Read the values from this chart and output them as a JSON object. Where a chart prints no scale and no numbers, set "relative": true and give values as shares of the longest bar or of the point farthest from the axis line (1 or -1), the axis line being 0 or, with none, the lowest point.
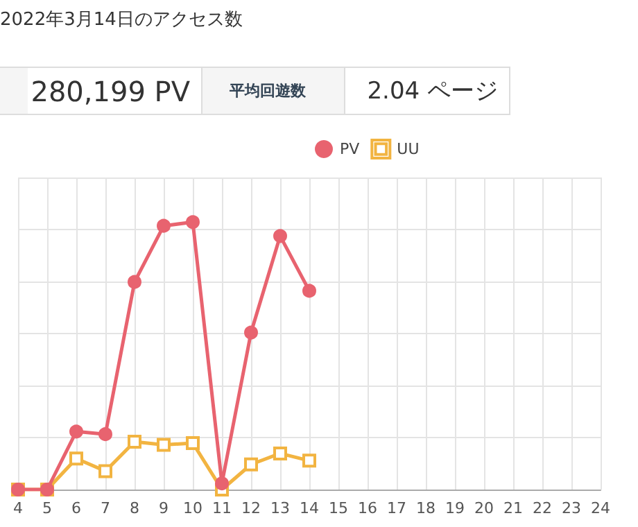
{
  "chart_data": {
    "type": "line",
    "title": "2022年3月14日のアクセス数",
    "annotations": [
      "280,199 PV",
      "平均回遊数",
      "2.04 ページ"
    ],
    "categories": [
      "4",
      "5",
      "6",
      "7",
      "8",
      "9",
      "10",
      "11",
      "12",
      "13",
      "14",
      "15",
      "16",
      "17",
      "18",
      "19",
      "20",
      "21",
      "22",
      "23",
      "24"
    ],
    "relative": true,
    "grid": true,
    "legend": "top right",
    "line_style": "solid",
    "series": [
      {
        "name": "PV",
        "color": "#e8636f",
        "marker": "circle",
        "values": [
          0,
          0,
          0.217,
          0.207,
          0.776,
          0.986,
          1,
          0.023,
          0.587,
          0.948,
          0.743,
          null,
          null,
          null,
          null,
          null,
          null,
          null,
          null,
          null,
          null
        ]
      },
      {
        "name": "UU",
        "color": "#f2b441",
        "marker": "square",
        "values": [
          0,
          0,
          0.116,
          0.069,
          0.179,
          0.167,
          0.174,
          0,
          0.094,
          0.135,
          0.108,
          null,
          null,
          null,
          null,
          null,
          null,
          null,
          null,
          null,
          null
        ]
      }
    ]
  }
}
